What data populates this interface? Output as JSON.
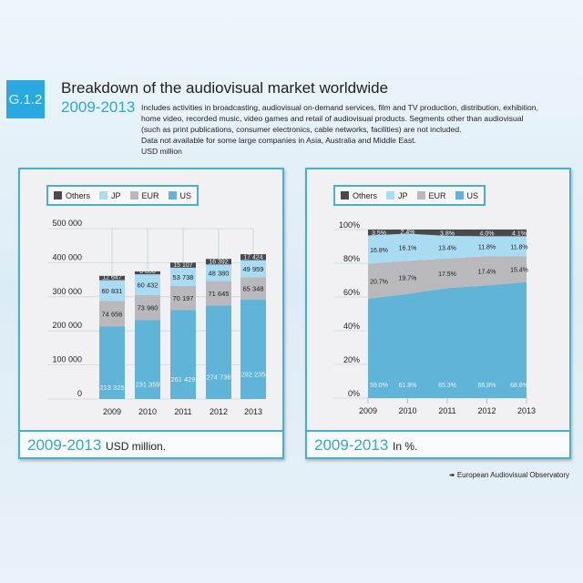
{
  "header": {
    "badge": "G.1.2",
    "title": "Breakdown of the audiovisual market worldwide",
    "years": "2009-2013",
    "description": [
      "Includes activities in broadcasting, audiovisual on-demand services, film and TV production, distribution, exhibition,",
      "home video, recorded music, video games and retail of audiovisual products. Segments other than audiovisual",
      "(such as print publications, consumer electronics, cable networks, facilities) are not included.",
      "Data not available for some large companies in Asia, Australia and Middle East.",
      "USD million"
    ]
  },
  "colors": {
    "Others": "#4a4a4c",
    "JP": "#a9dcf3",
    "EUR": "#b9b8bd",
    "US": "#5fb4d8",
    "accent": "#2aa9e0"
  },
  "legend": [
    "Others",
    "JP",
    "EUR",
    "US"
  ],
  "captions": [
    {
      "years": "2009-2013",
      "unit": "USD million."
    },
    {
      "years": "2009-2013",
      "unit": "In %."
    }
  ],
  "source": "European Audiovisual Observatory",
  "chart_data": [
    {
      "type": "bar",
      "stacked": true,
      "categories": [
        "2009",
        "2010",
        "2011",
        "2012",
        "2013"
      ],
      "yticks": [
        "0",
        "100 000",
        "200 000",
        "300 000",
        "400 000",
        "500 000"
      ],
      "ylim": [
        0,
        500000
      ],
      "series": [
        {
          "name": "US",
          "values": [
            213325,
            231359,
            261429,
            274736,
            292235
          ],
          "labels": [
            "213 325",
            "231 359",
            "261 429",
            "274 736",
            "292 235"
          ]
        },
        {
          "name": "EUR",
          "values": [
            74656,
            73960,
            70197,
            71645,
            65348
          ],
          "labels": [
            "74 656",
            "73 960",
            "70 197",
            "71 645",
            "65 348"
          ]
        },
        {
          "name": "JP",
          "values": [
            60831,
            60432,
            53738,
            48380,
            49959
          ],
          "labels": [
            "60 831",
            "60 432",
            "53 738",
            "48 380",
            "49 959"
          ]
        },
        {
          "name": "Others",
          "values": [
            12647,
            8850,
            15107,
            16392,
            17424
          ],
          "labels": [
            "12 647",
            "8 850",
            "15 107",
            "16 392",
            "17 424"
          ]
        }
      ],
      "legend": "top-left"
    },
    {
      "type": "area",
      "stacked": true,
      "categories": [
        "2009",
        "2010",
        "2011",
        "2012",
        "2013"
      ],
      "yticks": [
        "0%",
        "20%",
        "40%",
        "60%",
        "80%",
        "100%"
      ],
      "ylim": [
        0,
        100
      ],
      "series": [
        {
          "name": "US",
          "values": [
            59.0,
            61.8,
            65.3,
            66.8,
            68.8
          ],
          "labels": [
            "59.0%",
            "61.8%",
            "65.3%",
            "66.8%",
            "68.8%"
          ]
        },
        {
          "name": "EUR",
          "values": [
            20.7,
            19.7,
            17.5,
            17.4,
            15.4
          ],
          "labels": [
            "20.7%",
            "19.7%",
            "17.5%",
            "17.4%",
            "15.4%"
          ]
        },
        {
          "name": "JP",
          "values": [
            16.8,
            16.1,
            13.4,
            11.8,
            11.8
          ],
          "labels": [
            "16.8%",
            "16.1%",
            "13.4%",
            "11.8%",
            "11.8%"
          ]
        },
        {
          "name": "Others",
          "values": [
            3.5,
            2.4,
            3.8,
            4.0,
            4.1
          ],
          "labels": [
            "3.5%",
            "2.4%",
            "3.8%",
            "4.0%",
            "4.1%"
          ]
        }
      ],
      "legend": "top-left"
    }
  ]
}
